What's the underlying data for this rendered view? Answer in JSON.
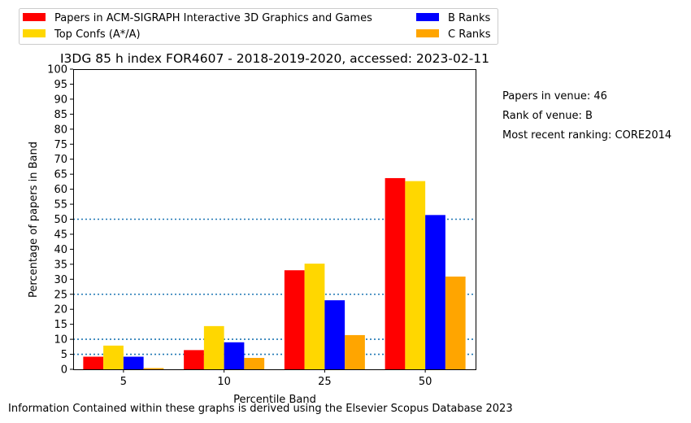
{
  "chart_data": {
    "type": "bar",
    "title": "I3DG 85 h index FOR4607 - 2018-2019-2020, accessed: 2023-02-11",
    "xlabel": "Percentile Band",
    "ylabel": "Percentage of papers in Band",
    "categories": [
      "5",
      "10",
      "25",
      "50"
    ],
    "ylim": [
      0,
      100
    ],
    "yticks": [
      0,
      5,
      10,
      15,
      20,
      25,
      30,
      35,
      40,
      45,
      50,
      55,
      60,
      65,
      70,
      75,
      80,
      85,
      90,
      95,
      100
    ],
    "series": [
      {
        "name": "Papers in ACM-SIGRAPH Interactive 3D Graphics and Games",
        "color": "#ff0000",
        "values": [
          4.2,
          6.4,
          33.0,
          63.7
        ]
      },
      {
        "name": "Top Confs (A*/A)",
        "color": "#ffd700",
        "values": [
          7.9,
          14.4,
          35.2,
          62.7
        ]
      },
      {
        "name": "B Ranks",
        "color": "#0000ff",
        "values": [
          4.2,
          9.0,
          23.0,
          51.4
        ]
      },
      {
        "name": "C Ranks",
        "color": "#ffa500",
        "values": [
          0.4,
          3.8,
          11.4,
          30.9
        ]
      }
    ],
    "reference_lines": [
      5,
      10,
      25,
      50
    ],
    "reference_line_color": "#1f77b4",
    "legend_position": "top-left, above plot, two columns",
    "grid": false
  },
  "info": {
    "papers_in_venue": "Papers in venue: 46",
    "rank_of_venue": "Rank of venue: B",
    "most_recent_ranking": "Most recent ranking: CORE2014"
  },
  "footer": "Information Contained within these graphs is derived using the Elsevier Scopus Database 2023"
}
